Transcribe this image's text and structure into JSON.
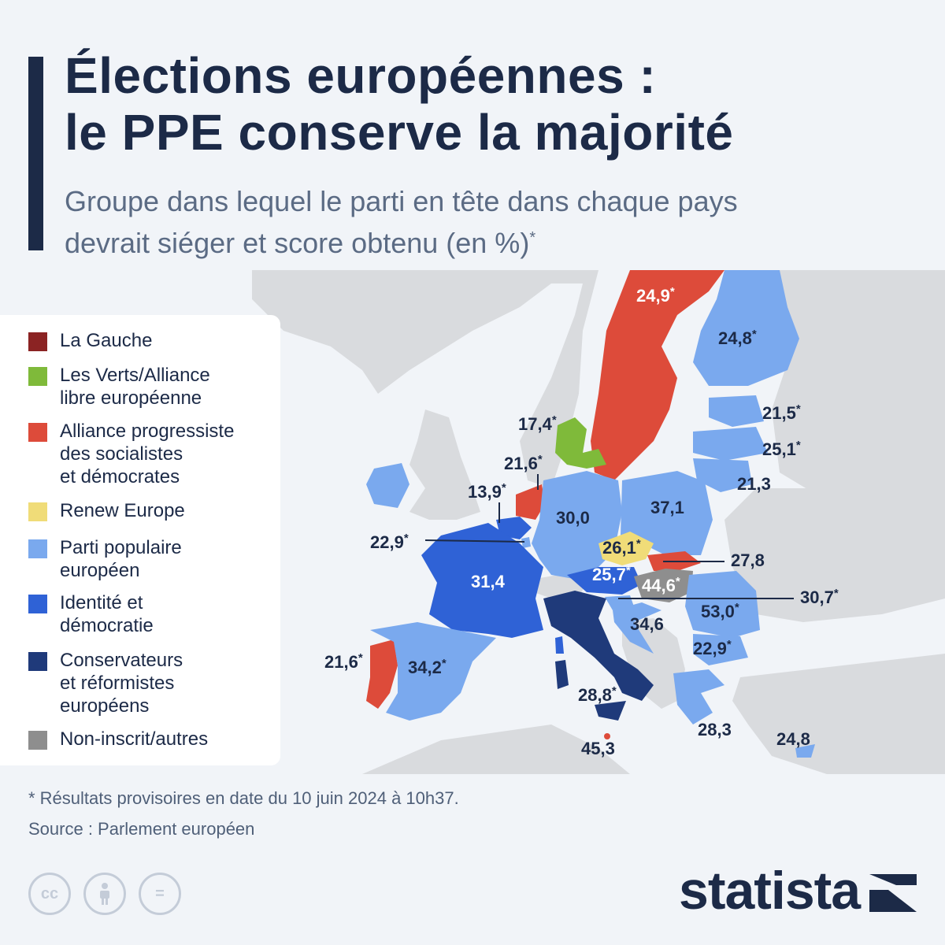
{
  "title": {
    "line1": "Élections européennes :",
    "line2": "le PPE conserve la majorité"
  },
  "subtitle": {
    "line1": "Groupe dans lequel le parti en tête dans chaque pays",
    "line2": "devrait siéger et score obtenu (en %)",
    "asterisk": "*"
  },
  "legend": [
    {
      "label": "La Gauche",
      "color": "#8b2323"
    },
    {
      "label": "Les Verts/Alliance\nlibre européenne",
      "color": "#7fba3a"
    },
    {
      "label": "Alliance progressiste\ndes socialistes\net démocrates",
      "color": "#dd4b3a"
    },
    {
      "label": "Renew Europe",
      "color": "#f0dc78"
    },
    {
      "label": "Parti populaire\neuropéen",
      "color": "#7aa9ee"
    },
    {
      "label": "Identité et\ndémocratie",
      "color": "#2f62d6"
    },
    {
      "label": "Conservateurs\net réformistes\neuropéens",
      "color": "#1f3a7a"
    },
    {
      "label": "Non-inscrit/autres",
      "color": "#8e8e8e"
    }
  ],
  "countries": [
    {
      "name": "Sweden",
      "group": "Alliance progressiste des socialistes et démocrates",
      "color": "#dd4b3a",
      "label": "24,9*",
      "score": 24.9
    },
    {
      "name": "Finland",
      "group": "Parti populaire européen",
      "color": "#7aa9ee",
      "label": "24,8*",
      "score": 24.8
    },
    {
      "name": "Estonia",
      "group": "Parti populaire européen",
      "color": "#7aa9ee",
      "label": "21,5*",
      "score": 21.5
    },
    {
      "name": "Latvia",
      "group": "Parti populaire européen",
      "color": "#7aa9ee",
      "label": "25,1*",
      "score": 25.1
    },
    {
      "name": "Lithuania",
      "group": "Parti populaire européen",
      "color": "#7aa9ee",
      "label": "21,3",
      "score": 21.3
    },
    {
      "name": "Denmark",
      "group": "Les Verts/Alliance libre européenne",
      "color": "#7fba3a",
      "label": "17,4*",
      "score": 17.4
    },
    {
      "name": "Netherlands",
      "group": "Alliance progressiste des socialistes et démocrates",
      "color": "#dd4b3a",
      "label": "21,6*",
      "score": 21.6
    },
    {
      "name": "Belgium",
      "group": "Identité et démocratie",
      "color": "#2f62d6",
      "label": "13,9*",
      "score": 13.9
    },
    {
      "name": "Luxembourg",
      "group": "Parti populaire européen",
      "color": "#7aa9ee",
      "label": "22,9*",
      "score": 22.9
    },
    {
      "name": "Germany",
      "group": "Parti populaire européen",
      "color": "#7aa9ee",
      "label": "30,0",
      "score": 30.0
    },
    {
      "name": "Poland",
      "group": "Parti populaire européen",
      "color": "#7aa9ee",
      "label": "37,1",
      "score": 37.1
    },
    {
      "name": "France",
      "group": "Identité et démocratie",
      "color": "#2f62d6",
      "label": "31,4",
      "score": 31.4
    },
    {
      "name": "Czechia",
      "group": "Renew Europe",
      "color": "#f0dc78",
      "label": "26,1*",
      "score": 26.1
    },
    {
      "name": "Slovakia",
      "group": "Alliance progressiste des socialistes et démocrates",
      "color": "#dd4b3a",
      "label": "27,8",
      "score": 27.8
    },
    {
      "name": "Austria",
      "group": "Identité et démocratie",
      "color": "#2f62d6",
      "label": "25,7*",
      "score": 25.7
    },
    {
      "name": "Hungary",
      "group": "Non-inscrit/autres",
      "color": "#8e8e8e",
      "label": "44,6*",
      "score": 44.6
    },
    {
      "name": "Slovenia",
      "group": "Parti populaire européen",
      "color": "#7aa9ee",
      "label": "30,7*",
      "score": 30.7
    },
    {
      "name": "Croatia",
      "group": "Parti populaire européen",
      "color": "#7aa9ee",
      "label": "34,6",
      "score": 34.6
    },
    {
      "name": "Romania",
      "group": "Parti populaire européen",
      "color": "#7aa9ee",
      "label": "53,0*",
      "score": 53.0
    },
    {
      "name": "Bulgaria",
      "group": "Parti populaire européen",
      "color": "#7aa9ee",
      "label": "22,9*",
      "score": 22.9
    },
    {
      "name": "Portugal",
      "group": "Alliance progressiste des socialistes et démocrates",
      "color": "#dd4b3a",
      "label": "21,6*",
      "score": 21.6
    },
    {
      "name": "Spain",
      "group": "Parti populaire européen",
      "color": "#7aa9ee",
      "label": "34,2*",
      "score": 34.2
    },
    {
      "name": "Italy",
      "group": "Conservateurs et réformistes européens",
      "color": "#1f3a7a",
      "label": "28,8*",
      "score": 28.8
    },
    {
      "name": "Malta",
      "group": "Alliance progressiste des socialistes et démocrates",
      "color": "#dd4b3a",
      "label": "45,3",
      "score": 45.3
    },
    {
      "name": "Greece",
      "group": "Parti populaire européen",
      "color": "#7aa9ee",
      "label": "28,3",
      "score": 28.3
    },
    {
      "name": "Cyprus",
      "group": "Parti populaire européen",
      "color": "#7aa9ee",
      "label": "24,8",
      "score": 24.8
    },
    {
      "name": "Ireland",
      "group": "Parti populaire européen",
      "color": "#7aa9ee"
    }
  ],
  "footer": {
    "footnote": "* Résultats provisoires en date du 10 juin 2024 à 10h37.",
    "source": "Source : Parlement européen",
    "brand": "statista",
    "license_icons": [
      "cc-icon",
      "attribution-icon",
      "no-derivatives-icon"
    ]
  },
  "colors": {
    "title": "#1c2a47",
    "background": "#f1f4f8",
    "non_eu": "#d9dbde"
  }
}
